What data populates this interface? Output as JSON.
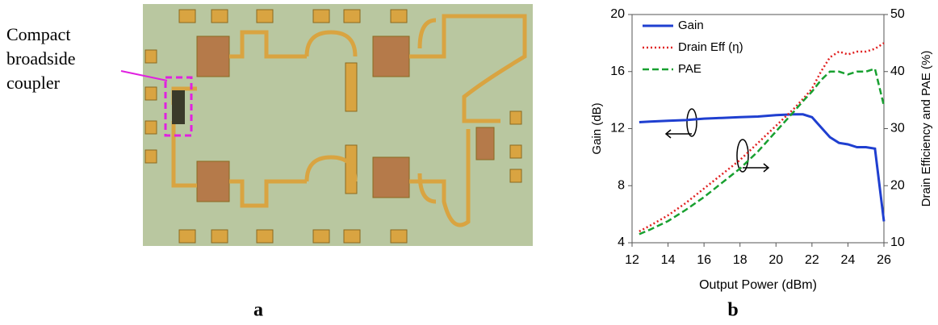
{
  "figure": {
    "annotation": [
      "Compact",
      "broadside",
      "coupler"
    ],
    "panel_a": "a",
    "panel_b": "b"
  },
  "chart_data": {
    "type": "line",
    "x_label": "Output Power (dBm)",
    "y_label": "Gain (dB)",
    "y2_label": "Drain Efficiency and PAE (%)",
    "x": [
      12.4,
      13,
      14,
      15,
      16,
      17,
      18,
      19,
      20,
      21,
      21.5,
      22,
      22.5,
      23,
      23.5,
      24,
      24.5,
      25,
      25.5,
      26
    ],
    "series": [
      {
        "name": "Gain",
        "color": "#1f3fd0",
        "style": "solid",
        "values": [
          12.45,
          12.5,
          12.55,
          12.6,
          12.7,
          12.75,
          12.8,
          12.85,
          12.95,
          13.0,
          13.0,
          12.8,
          12.1,
          11.4,
          11.0,
          10.9,
          10.7,
          10.7,
          10.6,
          5.5
        ]
      },
      {
        "name": "Drain Eff (η)",
        "color": "#e02020",
        "style": "dotted",
        "axis": "y2",
        "values": [
          12,
          13,
          14.8,
          17,
          19.5,
          22,
          24.5,
          27.5,
          30.5,
          33.5,
          35.2,
          37,
          40,
          42.5,
          43.5,
          43,
          43.5,
          43.5,
          44,
          45
        ]
      },
      {
        "name": "PAE",
        "color": "#18a030",
        "style": "dashed",
        "axis": "y2",
        "values": [
          11.5,
          12.3,
          13.8,
          15.8,
          18,
          20.5,
          23,
          26,
          29.5,
          33,
          34.8,
          36.5,
          38.5,
          40,
          40,
          39.5,
          40,
          40,
          40.5,
          34
        ]
      }
    ],
    "xlim": [
      12,
      26
    ],
    "xticks": [
      12,
      14,
      16,
      18,
      20,
      22,
      24,
      26
    ],
    "ylim": [
      4,
      20
    ],
    "yticks": [
      4,
      8,
      12,
      16,
      20
    ],
    "y2lim": [
      10,
      50
    ],
    "y2ticks": [
      10,
      20,
      30,
      40,
      50
    ]
  }
}
